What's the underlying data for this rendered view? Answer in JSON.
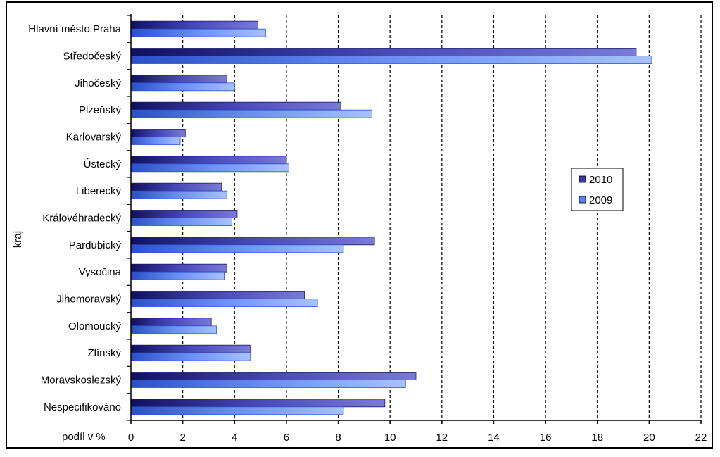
{
  "chart_data": {
    "type": "bar",
    "orientation": "horizontal",
    "title": "",
    "xlabel": "podíl v %",
    "ylabel": "kraj",
    "xlim": [
      0,
      22
    ],
    "xticks": [
      0,
      2,
      4,
      6,
      8,
      10,
      12,
      14,
      16,
      18,
      20,
      22
    ],
    "grid": "vertical dashed",
    "legend_position": "right",
    "categories": [
      "Hlavní město Praha",
      "Středočeský",
      "Jihočeský",
      "Plzeňský",
      "Karlovarský",
      "Ústecký",
      "Liberecký",
      "Královéhradecký",
      "Pardubický",
      "Vysočina",
      "Jihomoravský",
      "Olomoucký",
      "Zlínský",
      "Moravskoslezský",
      "Nespecifikováno"
    ],
    "series": [
      {
        "name": "2010",
        "color": "#3a3aa8",
        "values": [
          4.9,
          19.5,
          3.7,
          8.1,
          2.1,
          6.0,
          3.5,
          4.1,
          9.4,
          3.7,
          6.7,
          3.1,
          4.6,
          11.0,
          9.8
        ]
      },
      {
        "name": "2009",
        "color": "#5b83f0",
        "values": [
          5.2,
          20.1,
          4.0,
          9.3,
          1.9,
          6.1,
          3.7,
          3.9,
          8.2,
          3.6,
          7.2,
          3.3,
          4.6,
          10.6,
          8.2
        ]
      }
    ]
  }
}
